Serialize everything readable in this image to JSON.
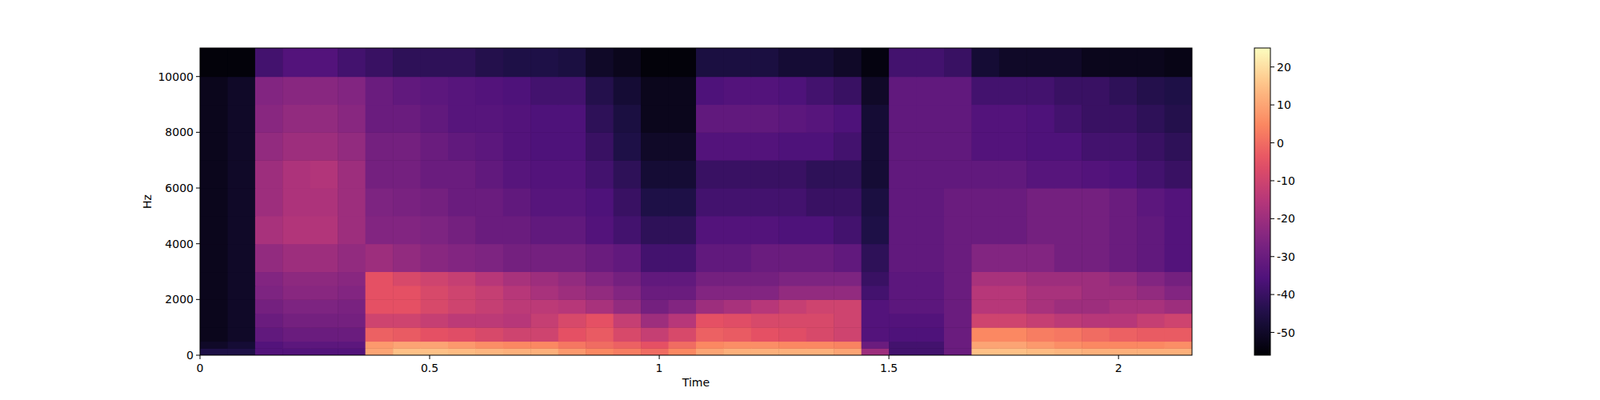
{
  "chart_data": {
    "type": "heatmap",
    "x_label": "Time",
    "y_label": "Hz",
    "xlim": [
      0,
      2.16
    ],
    "xticks": [
      0,
      0.5,
      1,
      1.5,
      2
    ],
    "ylim": [
      0,
      11025
    ],
    "yticks": [
      0,
      2000,
      4000,
      6000,
      8000,
      10000
    ],
    "color": "magma",
    "colorbar_range": [
      -56,
      25
    ],
    "colorbar_ticks": [
      -50,
      -40,
      -30,
      -20,
      -10,
      0,
      10,
      20
    ],
    "x_edges": [
      0,
      0.06,
      0.12,
      0.18,
      0.24,
      0.3,
      0.36,
      0.42,
      0.48,
      0.54,
      0.6,
      0.66,
      0.72,
      0.78,
      0.84,
      0.9,
      0.96,
      1.02,
      1.08,
      1.14,
      1.2,
      1.26,
      1.32,
      1.38,
      1.44,
      1.5,
      1.56,
      1.62,
      1.68,
      1.74,
      1.8,
      1.86,
      1.92,
      1.98,
      2.04,
      2.1,
      2.16
    ],
    "y_edges": [
      0,
      250,
      500,
      1000,
      1500,
      2000,
      2500,
      3000,
      4000,
      5000,
      6000,
      7000,
      8000,
      9000,
      10000,
      11025
    ],
    "cells": [
      [
        -45,
        -45,
        -35,
        -35,
        -35,
        -35,
        10,
        15,
        15,
        14,
        13,
        12,
        12,
        8,
        5,
        3,
        0,
        5,
        10,
        12,
        12,
        12,
        12,
        10,
        -20,
        -38,
        -38,
        -30,
        15,
        15,
        14,
        13,
        12,
        12,
        12,
        12
      ],
      [
        -50,
        -48,
        -35,
        -33,
        -33,
        -33,
        8,
        10,
        10,
        8,
        6,
        5,
        5,
        2,
        0,
        -2,
        -5,
        0,
        5,
        6,
        6,
        5,
        5,
        4,
        -30,
        -38,
        -38,
        -30,
        10,
        10,
        8,
        6,
        5,
        5,
        5,
        6
      ],
      [
        -52,
        -50,
        -32,
        -30,
        -30,
        -30,
        -2,
        -3,
        -5,
        -6,
        -8,
        -10,
        -10,
        -5,
        -3,
        -8,
        -12,
        -8,
        -2,
        -3,
        -5,
        -6,
        -8,
        -10,
        -35,
        -36,
        -36,
        -30,
        5,
        5,
        3,
        2,
        0,
        -2,
        -3,
        -3
      ],
      [
        -52,
        -50,
        -30,
        -28,
        -28,
        -28,
        -10,
        -10,
        -12,
        -14,
        -14,
        -15,
        -12,
        -8,
        -5,
        -12,
        -20,
        -15,
        -5,
        -6,
        -8,
        -8,
        -8,
        -10,
        -35,
        -35,
        -35,
        -30,
        -10,
        -10,
        -12,
        -14,
        -15,
        -15,
        -12,
        -10
      ],
      [
        -52,
        -50,
        -28,
        -26,
        -26,
        -27,
        -5,
        -5,
        -8,
        -10,
        -12,
        -14,
        -14,
        -15,
        -18,
        -22,
        -28,
        -25,
        -20,
        -18,
        -15,
        -12,
        -10,
        -10,
        -35,
        -33,
        -33,
        -30,
        -15,
        -15,
        -18,
        -20,
        -20,
        -18,
        -18,
        -20
      ],
      [
        -52,
        -50,
        -26,
        -24,
        -24,
        -25,
        -5,
        -5,
        -8,
        -10,
        -12,
        -15,
        -18,
        -20,
        -22,
        -25,
        -30,
        -30,
        -25,
        -25,
        -25,
        -22,
        -22,
        -22,
        -38,
        -33,
        -33,
        -30,
        -15,
        -15,
        -18,
        -18,
        -20,
        -20,
        -22,
        -25
      ],
      [
        -52,
        -50,
        -25,
        -23,
        -23,
        -24,
        -5,
        -8,
        -10,
        -12,
        -15,
        -18,
        -20,
        -22,
        -25,
        -28,
        -32,
        -32,
        -28,
        -28,
        -28,
        -26,
        -26,
        -26,
        -40,
        -33,
        -33,
        -30,
        -18,
        -18,
        -20,
        -20,
        -20,
        -22,
        -25,
        -28
      ],
      [
        -52,
        -50,
        -22,
        -20,
        -20,
        -22,
        -20,
        -22,
        -24,
        -25,
        -26,
        -28,
        -28,
        -28,
        -30,
        -32,
        -38,
        -38,
        -32,
        -32,
        -30,
        -30,
        -30,
        -32,
        -42,
        -32,
        -32,
        -30,
        -25,
        -25,
        -25,
        -28,
        -28,
        -30,
        -32,
        -35
      ],
      [
        -52,
        -50,
        -18,
        -16,
        -16,
        -20,
        -25,
        -25,
        -26,
        -28,
        -30,
        -30,
        -32,
        -32,
        -35,
        -38,
        -42,
        -42,
        -35,
        -35,
        -35,
        -36,
        -36,
        -38,
        -45,
        -32,
        -32,
        -30,
        -30,
        -30,
        -28,
        -28,
        -28,
        -30,
        -32,
        -35
      ],
      [
        -52,
        -50,
        -20,
        -17,
        -17,
        -20,
        -26,
        -27,
        -28,
        -30,
        -30,
        -32,
        -34,
        -34,
        -36,
        -40,
        -45,
        -45,
        -38,
        -38,
        -38,
        -38,
        -40,
        -40,
        -46,
        -32,
        -32,
        -30,
        -30,
        -30,
        -28,
        -28,
        -28,
        -30,
        -33,
        -35
      ],
      [
        -52,
        -50,
        -20,
        -17,
        -16,
        -20,
        -28,
        -28,
        -30,
        -30,
        -32,
        -34,
        -35,
        -35,
        -38,
        -42,
        -48,
        -48,
        -40,
        -40,
        -40,
        -40,
        -42,
        -42,
        -48,
        -32,
        -32,
        -32,
        -32,
        -32,
        -34,
        -34,
        -35,
        -36,
        -38,
        -40
      ],
      [
        -52,
        -50,
        -22,
        -20,
        -20,
        -22,
        -28,
        -28,
        -30,
        -32,
        -33,
        -35,
        -36,
        -36,
        -40,
        -45,
        -50,
        -50,
        -35,
        -35,
        -35,
        -36,
        -36,
        -38,
        -48,
        -32,
        -32,
        -32,
        -35,
        -35,
        -36,
        -36,
        -38,
        -38,
        -40,
        -42
      ],
      [
        -52,
        -50,
        -24,
        -22,
        -22,
        -24,
        -30,
        -30,
        -32,
        -34,
        -34,
        -35,
        -36,
        -36,
        -42,
        -46,
        -52,
        -52,
        -32,
        -32,
        -32,
        -33,
        -34,
        -36,
        -48,
        -32,
        -32,
        -32,
        -35,
        -35,
        -36,
        -38,
        -40,
        -40,
        -42,
        -44
      ],
      [
        -52,
        -50,
        -25,
        -24,
        -24,
        -25,
        -30,
        -32,
        -33,
        -34,
        -35,
        -36,
        -38,
        -38,
        -44,
        -48,
        -52,
        -52,
        -36,
        -35,
        -35,
        -36,
        -38,
        -40,
        -50,
        -32,
        -32,
        -32,
        -38,
        -38,
        -38,
        -40,
        -40,
        -42,
        -44,
        -45
      ],
      [
        -55,
        -55,
        -38,
        -35,
        -35,
        -38,
        -40,
        -42,
        -42,
        -42,
        -44,
        -45,
        -45,
        -46,
        -50,
        -52,
        -55,
        -55,
        -46,
        -46,
        -46,
        -48,
        -48,
        -50,
        -54,
        -38,
        -38,
        -40,
        -48,
        -50,
        -50,
        -50,
        -52,
        -52,
        -52,
        -53
      ]
    ]
  }
}
